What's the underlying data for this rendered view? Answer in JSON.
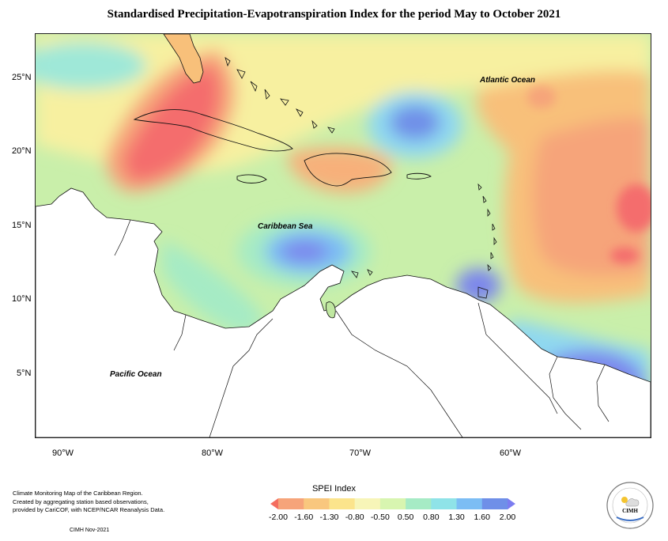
{
  "title": "Standardised Precipitation-Evapotranspiration Index for the period May to October 2021",
  "map": {
    "latitude_labels": [
      "25°N",
      "20°N",
      "15°N",
      "10°N",
      "5°N"
    ],
    "longitude_labels": [
      "90°W",
      "80°W",
      "70°W",
      "60°W"
    ],
    "region_labels": {
      "atlantic": "Atlantic Ocean",
      "caribbean": "Caribbean Sea",
      "pacific": "Pacific Ocean"
    }
  },
  "legend": {
    "title": "SPEI Index",
    "ticks": [
      "-2.00",
      "-1.60",
      "-1.30",
      "-0.80",
      "-0.50",
      "0.50",
      "0.80",
      "1.30",
      "1.60",
      "2.00"
    ],
    "colors": [
      "#f46d5f",
      "#f6a47a",
      "#f9c77e",
      "#fbe48c",
      "#f7f5b8",
      "#d8f5b0",
      "#a6ebc5",
      "#8fe3e8",
      "#7cbdf4",
      "#6f8fe8",
      "#7b7cf0"
    ]
  },
  "credits": {
    "lines": [
      "Climate Monitoring Map of the Caribbean Region.",
      "Created by aggregating station based observations,",
      "provided by CariCOF, with NCEP/NCAR Reanalysis Data."
    ],
    "date": "CIMH Nov-2021"
  },
  "logo": {
    "text": "CIMH"
  }
}
